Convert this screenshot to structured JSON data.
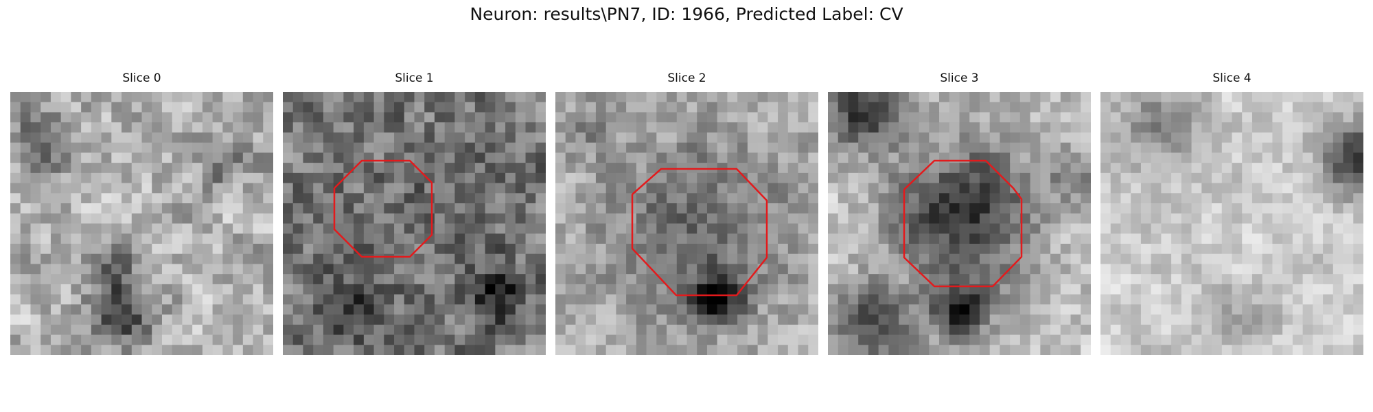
{
  "figure": {
    "title": "Neuron: results\\PN7, ID: 1966, Predicted Label: CV",
    "contour_color": "#e31a1c",
    "colormap": "gray",
    "slices": [
      {
        "label": "Slice 0",
        "has_contour": false,
        "tone": "mottled-light"
      },
      {
        "label": "Slice 1",
        "has_contour": true,
        "tone": "dark"
      },
      {
        "label": "Slice 2",
        "has_contour": true,
        "tone": "medium-light"
      },
      {
        "label": "Slice 3",
        "has_contour": true,
        "tone": "light-with-dark-center"
      },
      {
        "label": "Slice 4",
        "has_contour": false,
        "tone": "very-light"
      }
    ]
  }
}
